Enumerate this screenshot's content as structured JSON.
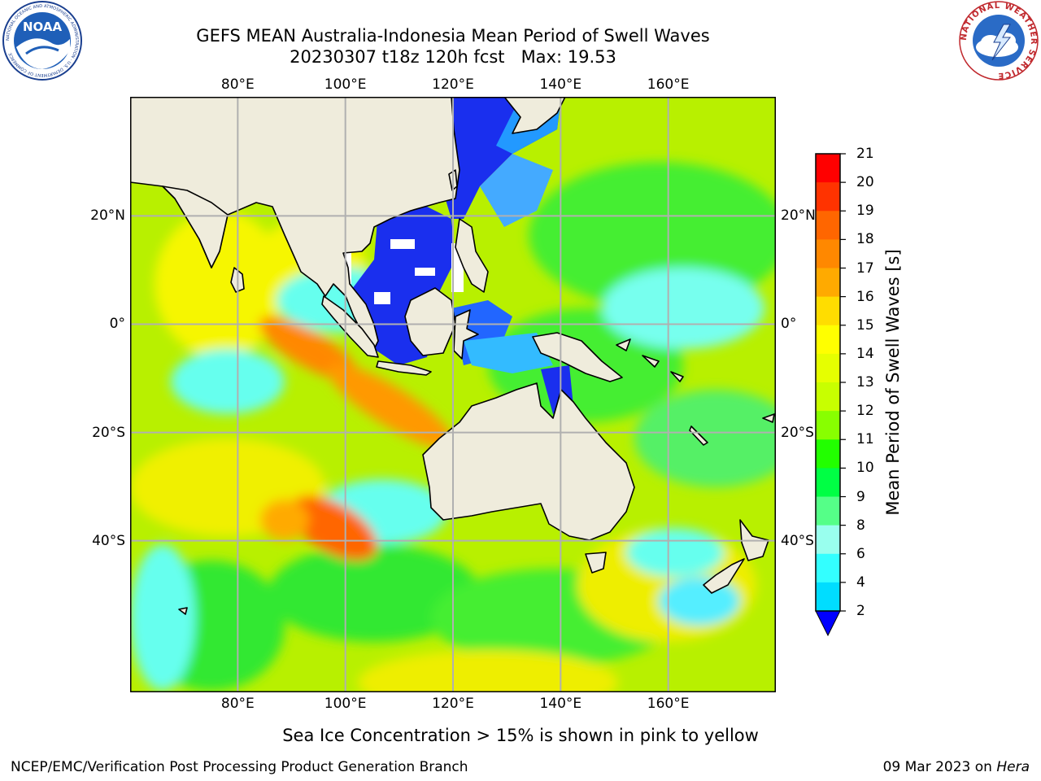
{
  "header": {
    "title_line1": "GEFS MEAN Australia-Indonesia Mean Period of Swell Waves",
    "title_line2": "20230307 t18z 120h fcst   Max: 19.53"
  },
  "map": {
    "lon_labels": [
      "80°E",
      "100°E",
      "120°E",
      "140°E",
      "160°E"
    ],
    "lat_labels": [
      "20°N",
      "0°",
      "20°S",
      "40°S"
    ],
    "lon_range": [
      60,
      180
    ],
    "lat_range": [
      -68,
      42
    ],
    "land_color": "#efecdc",
    "grid_color": "#b0b0b0"
  },
  "colorbar": {
    "label": "Mean Period of Swell Waves [s]",
    "ticks": [
      "21",
      "20",
      "19",
      "18",
      "17",
      "16",
      "15",
      "14",
      "13",
      "12",
      "11",
      "10",
      "9",
      "8",
      "6",
      "4",
      "2"
    ],
    "colors": [
      "#ff0000",
      "#ff3300",
      "#ff6600",
      "#ff8800",
      "#ffaa00",
      "#ffdd00",
      "#ffff00",
      "#e6ff00",
      "#c8ff00",
      "#88ff00",
      "#22ff00",
      "#00ff44",
      "#55ff88",
      "#99ffee",
      "#33ffff",
      "#00ddff",
      "#0077ff",
      "#0000ff"
    ]
  },
  "footer": {
    "note": "Sea Ice Concentration > 15% is shown in pink to yellow",
    "credit_left": "NCEP/EMC/Verification Post Processing Product Generation Branch",
    "credit_date": "09 Mar 2023 on ",
    "credit_host": "Hera"
  },
  "logos": {
    "noaa_text": "NOAA",
    "noaa_ring": "NATIONAL OCEANIC AND ATMOSPHERIC ADMINISTRATION · U.S. DEPARTMENT OF COMMERCE",
    "nws_ring": "NATIONAL WEATHER SERVICE"
  }
}
